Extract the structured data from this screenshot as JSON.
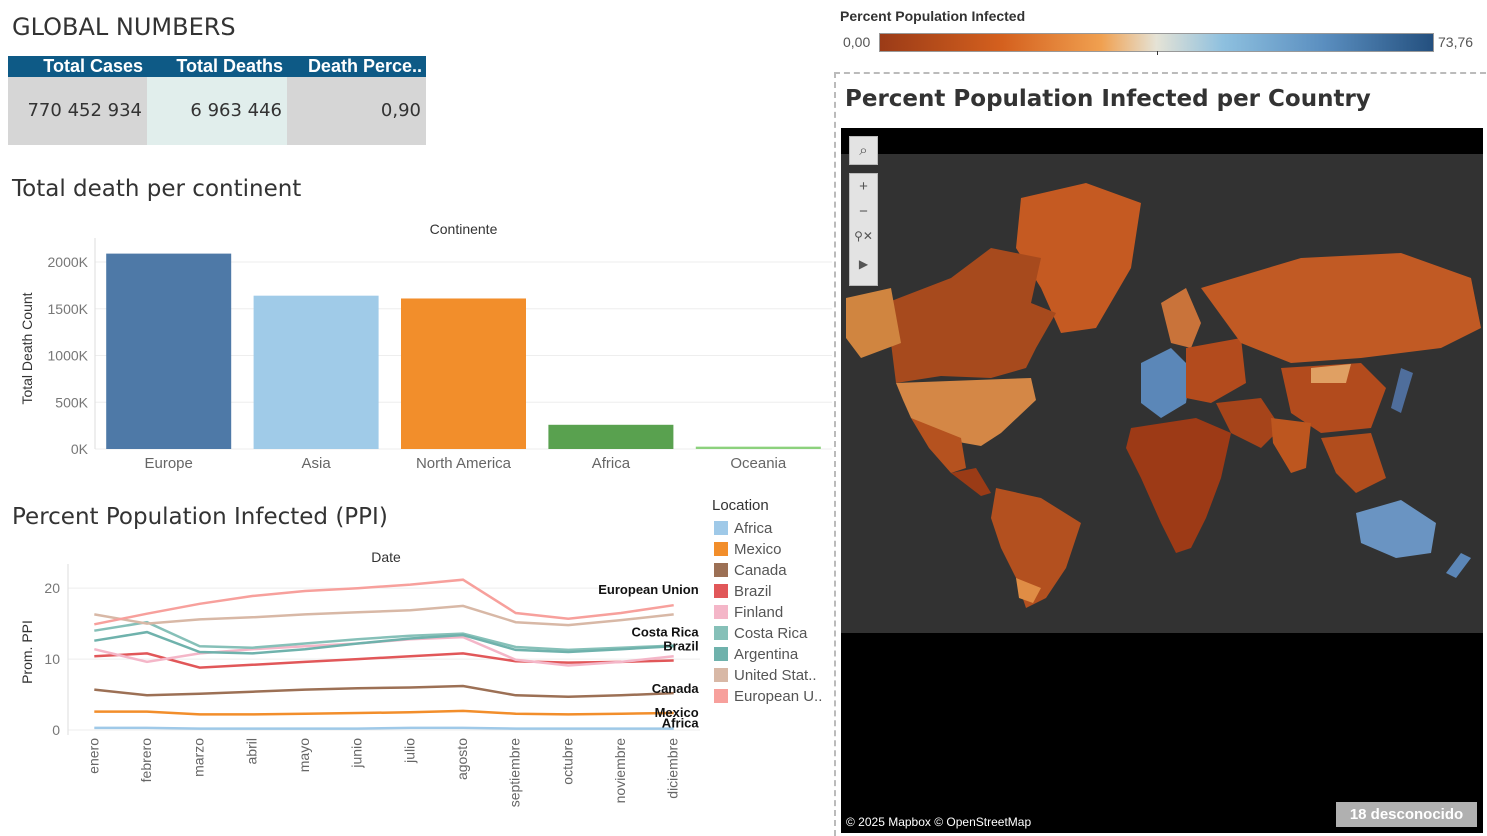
{
  "global": {
    "title": "GLOBAL NUMBERS",
    "headers": [
      "Total Cases",
      "Total Deaths",
      "Death Perce.."
    ],
    "values": [
      "770 452 934",
      "6 963 446",
      "0,90"
    ]
  },
  "continent_section": {
    "title": "Total death per continent"
  },
  "ppi_section": {
    "title": "Percent Population Infected (PPI)"
  },
  "map": {
    "legend_title": "Percent Population Infected",
    "legend_min": "0,00",
    "legend_max": "73,76",
    "title": "Percent Population Infected per Country",
    "attribution": "© 2025 Mapbox © OpenStreetMap",
    "unknown_badge": "18 desconocido",
    "colors": {
      "low": "#9b3b17",
      "mid": "#e5e3d6",
      "high": "#24507f"
    }
  },
  "legend": {
    "title": "Location",
    "items": [
      {
        "label": "Africa",
        "color": "#9fc9e8"
      },
      {
        "label": "Mexico",
        "color": "#f28e2b"
      },
      {
        "label": "Canada",
        "color": "#9c7055"
      },
      {
        "label": "Brazil",
        "color": "#e15759"
      },
      {
        "label": "Finland",
        "color": "#f4b6c8"
      },
      {
        "label": "Costa Rica",
        "color": "#86c0b8"
      },
      {
        "label": "Argentina",
        "color": "#6fb2ac"
      },
      {
        "label": "United Stat..",
        "color": "#d8b8a6"
      },
      {
        "label": "European U..",
        "color": "#f7a09c"
      }
    ]
  },
  "chart_data": [
    {
      "type": "bar",
      "title": "Continente",
      "xlabel": "",
      "ylabel": "Total Death Count",
      "categories": [
        "Europe",
        "Asia",
        "North America",
        "Africa",
        "Oceania"
      ],
      "values": [
        2090000,
        1640000,
        1610000,
        259000,
        25000
      ],
      "colors": [
        "#4e79a7",
        "#a0cbe8",
        "#f28e2b",
        "#59a14f",
        "#8cd17d"
      ],
      "ylim": [
        0,
        2150000
      ],
      "yticks": [
        0,
        500000,
        1000000,
        1500000,
        2000000
      ],
      "ytick_labels": [
        "0K",
        "500K",
        "1000K",
        "1500K",
        "2000K"
      ]
    },
    {
      "type": "line",
      "title": "Date",
      "xlabel": "",
      "ylabel": "Prom. PPI",
      "categories": [
        "enero",
        "febrero",
        "marzo",
        "abril",
        "mayo",
        "junio",
        "julio",
        "agosto",
        "septiembre",
        "octubre",
        "noviembre",
        "diciembre"
      ],
      "ylim": [
        0,
        22
      ],
      "yticks": [
        0,
        10,
        20
      ],
      "ytick_labels": [
        "0",
        "10",
        "20"
      ],
      "series": [
        {
          "name": "Africa",
          "label": "Africa",
          "color": "#9fc9e8",
          "values": [
            0.3,
            0.3,
            0.2,
            0.2,
            0.2,
            0.2,
            0.3,
            0.3,
            0.2,
            0.2,
            0.2,
            0.2
          ]
        },
        {
          "name": "Mexico",
          "label": "Mexico",
          "color": "#f28e2b",
          "values": [
            2.6,
            2.6,
            2.2,
            2.2,
            2.3,
            2.4,
            2.5,
            2.7,
            2.3,
            2.2,
            2.3,
            2.4
          ]
        },
        {
          "name": "Canada",
          "label": "Canada",
          "color": "#9c7055",
          "values": [
            5.7,
            4.9,
            5.1,
            5.4,
            5.7,
            5.9,
            6.0,
            6.2,
            4.9,
            4.7,
            4.9,
            5.2
          ]
        },
        {
          "name": "Brazil",
          "label": "Brazil",
          "color": "#e15759",
          "values": [
            10.4,
            10.8,
            8.8,
            9.2,
            9.6,
            10.0,
            10.4,
            10.8,
            9.7,
            9.5,
            9.6,
            9.8
          ]
        },
        {
          "name": "Finland",
          "label": "",
          "color": "#f4b6c8",
          "values": [
            11.4,
            9.6,
            10.8,
            11.4,
            11.8,
            12.2,
            12.8,
            13.1,
            9.9,
            9.1,
            9.6,
            10.4
          ]
        },
        {
          "name": "Costa Rica",
          "label": "Costa Rica",
          "color": "#86c0b8",
          "values": [
            14.0,
            15.2,
            11.8,
            11.6,
            12.2,
            12.8,
            13.3,
            13.6,
            11.7,
            11.3,
            11.6,
            11.9
          ]
        },
        {
          "name": "Argentina",
          "label": "",
          "color": "#6fb2ac",
          "values": [
            12.6,
            13.8,
            11.0,
            10.8,
            11.4,
            12.2,
            12.9,
            13.4,
            11.3,
            11.0,
            11.4,
            11.8
          ]
        },
        {
          "name": "United States",
          "label": "",
          "color": "#d8b8a6",
          "values": [
            16.3,
            15.0,
            15.6,
            15.9,
            16.3,
            16.6,
            16.9,
            17.5,
            15.2,
            14.8,
            15.5,
            16.3
          ]
        },
        {
          "name": "European Union",
          "label": "European Union",
          "color": "#f7a09c",
          "values": [
            14.9,
            16.4,
            17.8,
            18.9,
            19.6,
            20.0,
            20.5,
            21.2,
            16.5,
            15.7,
            16.5,
            17.6
          ]
        }
      ]
    }
  ]
}
